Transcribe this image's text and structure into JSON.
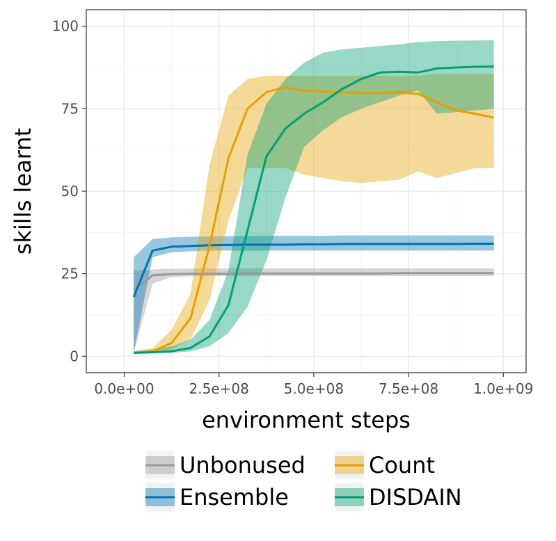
{
  "chart_data": {
    "type": "line",
    "title": "",
    "xlabel": "environment steps",
    "ylabel": "skills learnt",
    "xlim": [
      -100000000,
      1060000000
    ],
    "ylim": [
      -5,
      105
    ],
    "xticks": [
      0,
      250000000,
      500000000,
      750000000,
      1000000000
    ],
    "xtick_labels": [
      "0.0e+00",
      "2.5e+08",
      "5.0e+08",
      "7.5e+08",
      "1.0e+09"
    ],
    "yticks": [
      0,
      25,
      50,
      75,
      100
    ],
    "ytick_labels": [
      "0",
      "25",
      "50",
      "75",
      "100"
    ],
    "grid": true,
    "legend_position": "bottom",
    "series": [
      {
        "name": "Unbonused",
        "color": "#999999",
        "x": [
          25000000,
          75000000,
          125000000,
          175000000,
          225000000,
          275000000,
          325000000,
          375000000,
          425000000,
          475000000,
          525000000,
          575000000,
          625000000,
          675000000,
          725000000,
          775000000,
          825000000,
          875000000,
          925000000,
          975000000
        ],
        "values": [
          20,
          24.5,
          24.9,
          25,
          25,
          25,
          25.1,
          25.1,
          25.1,
          25.1,
          25.1,
          25.1,
          25.1,
          25.1,
          25.2,
          25.2,
          25.2,
          25.2,
          25.2,
          25.2
        ],
        "lower": [
          1,
          22,
          24,
          24.2,
          24.3,
          24.3,
          24.3,
          24.3,
          24.3,
          24.3,
          24.3,
          24.3,
          24.3,
          24.3,
          24.3,
          24.3,
          24.3,
          24.3,
          24.3,
          24.3
        ],
        "upper": [
          26,
          26.3,
          26.5,
          26.6,
          26.6,
          26.6,
          26.6,
          26.6,
          26.6,
          26.6,
          26.6,
          26.6,
          26.6,
          26.6,
          26.6,
          26.6,
          26.6,
          26.6,
          26.6,
          26.6
        ]
      },
      {
        "name": "Ensemble",
        "color": "#0072B2",
        "x": [
          25000000,
          75000000,
          125000000,
          175000000,
          225000000,
          275000000,
          325000000,
          375000000,
          425000000,
          475000000,
          525000000,
          575000000,
          625000000,
          675000000,
          725000000,
          775000000,
          825000000,
          875000000,
          925000000,
          975000000
        ],
        "values": [
          18,
          32,
          33.2,
          33.4,
          33.6,
          33.7,
          33.8,
          33.8,
          33.8,
          33.9,
          33.9,
          34,
          34,
          34,
          34,
          34,
          34,
          34,
          34.1,
          34.1
        ],
        "lower": [
          1,
          30,
          31.5,
          31.8,
          32,
          32,
          32,
          32,
          32,
          32,
          32,
          32,
          32,
          32,
          32,
          32,
          32,
          32,
          32,
          32
        ],
        "upper": [
          30,
          35.5,
          36,
          36.2,
          36.3,
          36.4,
          36.4,
          36.5,
          36.5,
          36.5,
          36.5,
          36.6,
          36.6,
          36.6,
          36.6,
          36.6,
          36.6,
          36.6,
          36.6,
          36.6
        ]
      },
      {
        "name": "Count",
        "color": "#E69F00",
        "x": [
          25000000,
          75000000,
          125000000,
          175000000,
          225000000,
          275000000,
          325000000,
          375000000,
          425000000,
          475000000,
          525000000,
          575000000,
          625000000,
          675000000,
          725000000,
          775000000,
          825000000,
          875000000,
          925000000,
          975000000
        ],
        "values": [
          1,
          1.5,
          4,
          11.5,
          33.5,
          60,
          75,
          80,
          81.5,
          80.5,
          80.2,
          80,
          79.8,
          79.8,
          80,
          79.5,
          77,
          74.5,
          73.5,
          72.3
        ],
        "lower": [
          1,
          1,
          2,
          5,
          17,
          41,
          57,
          57,
          57,
          55,
          54,
          53,
          52.5,
          53,
          53.5,
          56,
          54,
          55.5,
          57,
          57
        ],
        "upper": [
          1.5,
          2.5,
          8,
          19,
          58,
          79,
          84,
          85,
          85,
          85,
          85,
          85,
          85,
          85,
          85,
          85,
          85.5,
          85.5,
          85.5,
          85.5
        ]
      },
      {
        "name": "DISDAIN",
        "color": "#009E73",
        "x": [
          25000000,
          75000000,
          125000000,
          175000000,
          225000000,
          275000000,
          325000000,
          375000000,
          425000000,
          475000000,
          525000000,
          575000000,
          625000000,
          675000000,
          725000000,
          775000000,
          825000000,
          875000000,
          925000000,
          975000000
        ],
        "values": [
          1,
          1.2,
          1.5,
          2.5,
          6,
          15.5,
          38,
          60.5,
          69,
          73.5,
          77,
          81,
          84,
          86,
          86.2,
          86,
          87.2,
          87.5,
          87.7,
          87.8
        ],
        "lower": [
          1,
          1,
          1,
          1.5,
          3,
          7,
          15,
          29,
          48,
          63.5,
          68.5,
          72.5,
          75,
          77,
          79,
          80.5,
          73.5,
          74,
          74.5,
          75
        ],
        "upper": [
          1.5,
          2,
          3,
          5,
          11,
          26,
          61,
          76.5,
          84,
          89,
          92,
          93,
          93.5,
          94,
          94.5,
          95.2,
          95.5,
          95.6,
          95.7,
          95.8
        ]
      }
    ]
  }
}
